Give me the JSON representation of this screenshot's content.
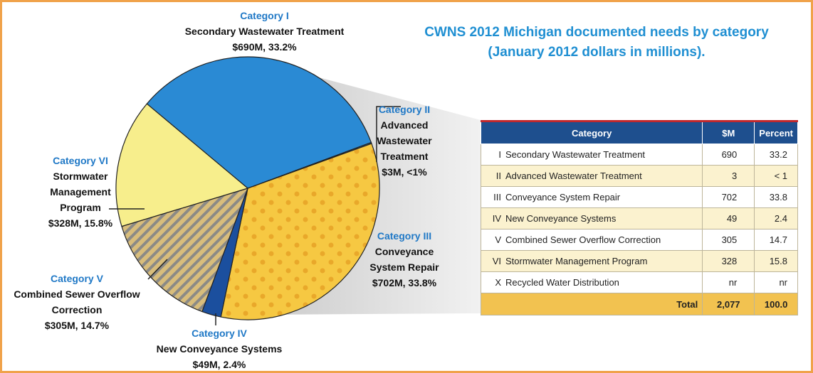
{
  "chart_data": {
    "type": "pie",
    "title": "CWNS 2012 Michigan documented needs by category",
    "subtitle": "(January 2012 dollars in millions).",
    "category_labels": [
      "Category I",
      "Category II",
      "Category III",
      "Category IV",
      "Category V",
      "Category VI"
    ],
    "categories": [
      "Secondary Wastewater Treatment",
      "Advanced Wastewater Treatment",
      "Conveyance System Repair",
      "New Conveyance Systems",
      "Combined Sewer Overflow Correction",
      "Stormwater Management Program"
    ],
    "values": [
      690,
      3,
      702,
      49,
      305,
      328
    ],
    "value_labels": [
      "$690M, 33.2%",
      "$3M, <1%",
      "$702M, 33.8%",
      "$49M, 2.4%",
      "$305M, 14.7%",
      "$328M, 15.8%"
    ],
    "colors": [
      "#2a8ad4",
      "#2277c4",
      "#f6c842",
      "#1b4f9e",
      "#d8bd7c",
      "#f7ee8c"
    ],
    "patterns": [
      "solid",
      "solid",
      "dots",
      "solid",
      "hatch",
      "solid"
    ]
  },
  "table": {
    "headers": [
      "Category",
      "$M",
      "Percent"
    ],
    "rows": [
      [
        "I",
        "Secondary Wastewater Treatment",
        690,
        33.2
      ],
      [
        "II",
        "Advanced Wastewater Treatment",
        3,
        "< 1"
      ],
      [
        "III",
        "Conveyance System Repair",
        702,
        33.8
      ],
      [
        "IV",
        "New Conveyance Systems",
        49,
        2.4
      ],
      [
        "V",
        "Combined Sewer Overflow Correction",
        305,
        14.7
      ],
      [
        "VI",
        "Stormwater Management Program",
        328,
        15.8
      ],
      [
        "X",
        "Recycled Water Distribution",
        "nr",
        "nr"
      ]
    ],
    "total": [
      "Total",
      "2,077",
      "100.0"
    ]
  }
}
